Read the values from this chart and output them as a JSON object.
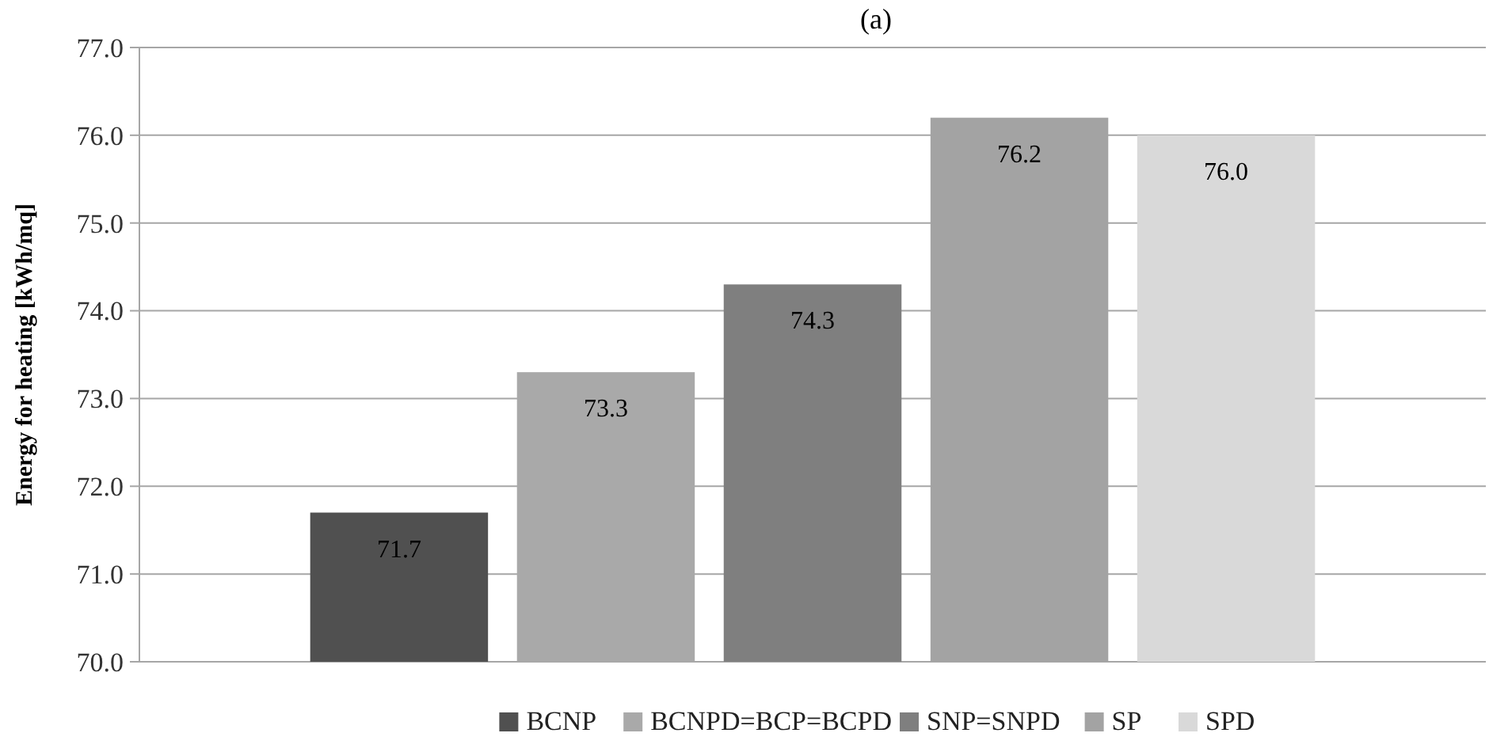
{
  "chart_data": {
    "type": "bar",
    "title": "(a)",
    "ylabel": "Energy for heating [kWh/mq]",
    "categories": [
      null
    ],
    "series": [
      {
        "name": "BCNP",
        "color": "#505050",
        "values": [
          71.7
        ],
        "value_labels": [
          "71.7"
        ]
      },
      {
        "name": "BCNPD=BCP=BCPD",
        "color": "#a9a9a9",
        "values": [
          73.3
        ],
        "value_labels": [
          "73.3"
        ]
      },
      {
        "name": "SNP=SNPD",
        "color": "#7f7f7f",
        "values": [
          74.3
        ],
        "value_labels": [
          "74.3"
        ]
      },
      {
        "name": "SP",
        "color": "#a3a3a3",
        "values": [
          76.2
        ],
        "value_labels": [
          "76.2"
        ]
      },
      {
        "name": "SPD",
        "color": "#d9d9d9",
        "values": [
          76.0
        ],
        "value_labels": [
          "76.0"
        ]
      }
    ],
    "ylim": [
      70,
      77
    ],
    "yticks": [
      {
        "value": 70,
        "label": "70.0"
      },
      {
        "value": 71,
        "label": "71.0"
      },
      {
        "value": 72,
        "label": "72.0"
      },
      {
        "value": 73,
        "label": "73.0"
      },
      {
        "value": 74,
        "label": "74.0"
      },
      {
        "value": 75,
        "label": "75.0"
      },
      {
        "value": 76,
        "label": "76.0"
      },
      {
        "value": 77,
        "label": "77.0"
      }
    ],
    "grid": "y",
    "legend": "bottom"
  }
}
